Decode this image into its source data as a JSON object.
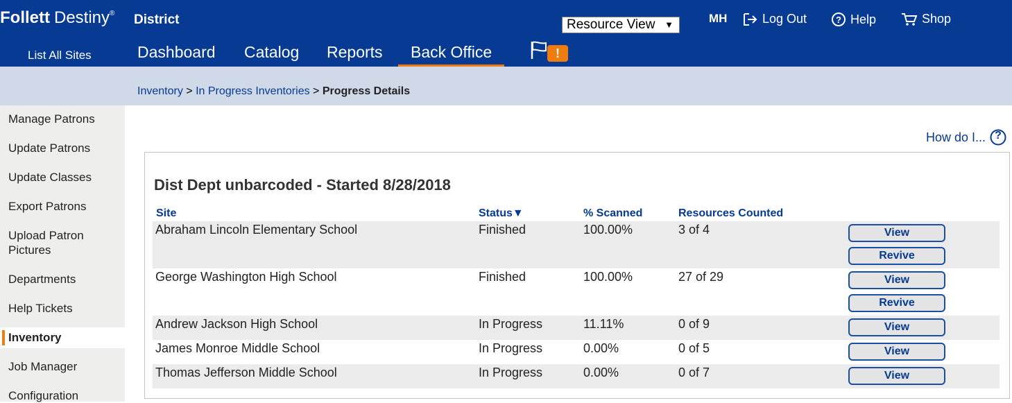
{
  "header": {
    "logo_brand": "Follett",
    "logo_product": "Destiny",
    "logo_mark": "®",
    "context": "District",
    "resource_select": {
      "selected": "Resource View",
      "arrow": "▼"
    },
    "user_initials": "MH",
    "links": {
      "logout": "Log Out",
      "help": "Help",
      "shop": "Shop"
    },
    "list_all_sites": "List All Sites",
    "nav": [
      "Dashboard",
      "Catalog",
      "Reports",
      "Back Office"
    ],
    "alert_badge": "!"
  },
  "breadcrumb": {
    "part1": "Inventory",
    "sep": ">",
    "part2": "In Progress Inventories",
    "current": "Progress Details"
  },
  "sidebar": {
    "items": [
      "Manage Patrons",
      "Update Patrons",
      "Update Classes",
      "Export Patrons",
      "Upload Patron",
      "Pictures",
      "Departments",
      "Help Tickets",
      "Inventory",
      "Job Manager",
      "Configuration"
    ]
  },
  "help_link": "How do I...",
  "help_icon": "?",
  "inventory": {
    "title": "Dist Dept unbarcoded - Started 8/28/2018",
    "columns": {
      "site": "Site",
      "status": "Status",
      "status_sort": "▼",
      "scanned": "% Scanned",
      "counted": "Resources Counted"
    },
    "rows": [
      {
        "site": "Abraham Lincoln Elementary School",
        "status": "Finished",
        "scanned": "100.00%",
        "counted": "3 of 4",
        "view": "View",
        "revive": "Revive"
      },
      {
        "site": "George Washington High School",
        "status": "Finished",
        "scanned": "100.00%",
        "counted": "27 of 29",
        "view": "View",
        "revive": "Revive"
      },
      {
        "site": "Andrew Jackson High School",
        "status": "In Progress",
        "scanned": "11.11%",
        "counted": "0 of 9",
        "view": "View"
      },
      {
        "site": "James Monroe Middle School",
        "status": "In Progress",
        "scanned": "0.00%",
        "counted": "0 of 5",
        "view": "View"
      },
      {
        "site": "Thomas Jefferson Middle School",
        "status": "In Progress",
        "scanned": "0.00%",
        "counted": "0 of 7",
        "view": "View"
      }
    ]
  },
  "colors": {
    "brand_blue": "#063a93",
    "accent_orange": "#f07c0e",
    "crumb_bg": "#d0d9e8",
    "sidebar_bg": "#eeeeed",
    "row_shade": "#ebebeb"
  },
  "icons": {
    "logout": "logout-icon",
    "help": "help-circle-icon",
    "shop": "cart-icon",
    "flag": "flag-icon"
  }
}
